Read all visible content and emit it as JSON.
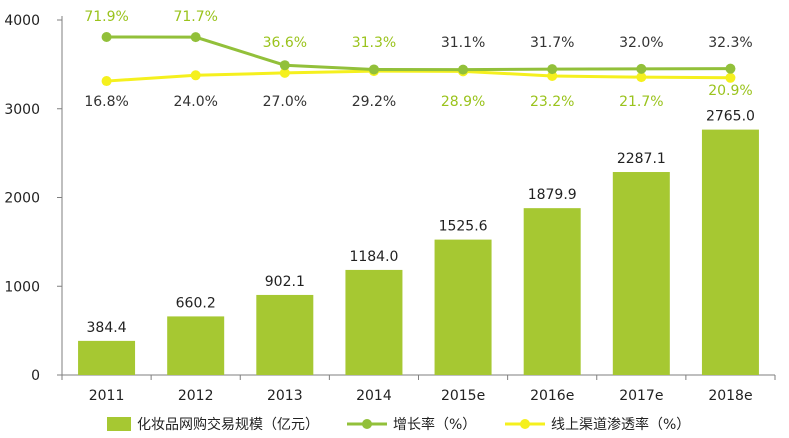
{
  "chart_data": {
    "type": "bar",
    "categories": [
      "2011",
      "2012",
      "2013",
      "2014",
      "2015e",
      "2016e",
      "2017e",
      "2018e"
    ],
    "ylim": [
      0,
      4000
    ],
    "yticks": [
      "0",
      "1000",
      "2000",
      "3000",
      "4000"
    ],
    "series": [
      {
        "name": "化妆品网购交易规模（亿元）",
        "kind": "bar",
        "color": "#a6c832",
        "values": [
          384.4,
          660.2,
          902.1,
          1184.0,
          1525.6,
          1879.9,
          2287.1,
          2765.0
        ],
        "labels": [
          "384.4",
          "660.2",
          "902.1",
          "1184.0",
          "1525.6",
          "1879.9",
          "2287.1",
          "2765.0"
        ]
      },
      {
        "name": "增长率（%）",
        "kind": "line",
        "color": "#92c03a",
        "values": [
          71.9,
          71.7,
          36.6,
          31.3,
          31.1,
          31.7,
          32.0,
          32.3
        ],
        "labels": [
          "71.9%",
          "71.7%",
          "36.6%",
          "31.3%",
          "31.1%",
          "31.7%",
          "32.0%",
          "32.3%"
        ]
      },
      {
        "name": "线上渠道渗透率（%）",
        "kind": "line",
        "color": "#f5f01e",
        "values": [
          16.8,
          24.0,
          27.0,
          29.2,
          28.9,
          23.2,
          21.7,
          20.9
        ],
        "labels": [
          "16.8%",
          "24.0%",
          "27.0%",
          "29.2%",
          "28.9%",
          "23.2%",
          "21.7%",
          "20.9%"
        ]
      }
    ],
    "label_colors": {
      "dark": "#333333",
      "green": "#9ac31c"
    },
    "axis_color": "#7f7f7f",
    "grid": false,
    "legend_position": "bottom"
  }
}
